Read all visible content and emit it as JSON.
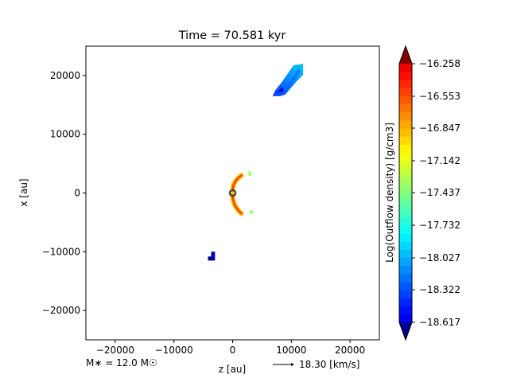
{
  "chart_data": {
    "type": "heatmap",
    "title": "Time = 70.581 kyr",
    "xlabel": "z [au]",
    "ylabel": "x [au]",
    "xlim": [
      -25000,
      25000
    ],
    "ylim": [
      -25000,
      25000
    ],
    "x_ticks": [
      -20000,
      -10000,
      0,
      10000,
      20000
    ],
    "x_tick_labels": [
      "−20000",
      "−10000",
      "0",
      "10000",
      "20000"
    ],
    "y_ticks": [
      -20000,
      -10000,
      0,
      10000,
      20000
    ],
    "y_tick_labels": [
      "−20000",
      "−10000",
      "0",
      "10000",
      "20000"
    ],
    "grid": false,
    "colorbar": {
      "label": "Log(Outflow density) [g/cm3]",
      "colormap": "jet",
      "range": [
        -18.617,
        -16.258
      ],
      "ticks": [
        -16.258,
        -16.553,
        -16.847,
        -17.142,
        -17.437,
        -17.732,
        -18.027,
        -18.322,
        -18.617
      ],
      "tick_labels": [
        "−16.258",
        "−16.553",
        "−16.847",
        "−17.142",
        "−17.437",
        "−17.732",
        "−18.027",
        "−18.322",
        "−18.617"
      ],
      "extend": "both"
    },
    "regions": [
      {
        "name": "upper-outflow-lobe",
        "z_range": [
          6800,
          12000
        ],
        "x_range": [
          16500,
          22000
        ],
        "log_density_range": [
          -18.4,
          -17.8
        ]
      },
      {
        "name": "central-arc",
        "z_range": [
          -300,
          1500
        ],
        "x_range": [
          -3500,
          3000
        ],
        "log_density_range": [
          -17.0,
          -16.7
        ]
      },
      {
        "name": "lower-clump",
        "z_range": [
          -4200,
          -3000
        ],
        "x_range": [
          -11500,
          -10000
        ],
        "log_density_range": [
          -18.6,
          -18.5
        ]
      }
    ],
    "source_marker": {
      "z": 0,
      "x": 0
    }
  },
  "annotations": {
    "mass": "M$_{*}$ = 12.0 M$_{\\odot}$",
    "mass_display": "M∗ = 12.0 M☉",
    "velocity_scale": "18.30 [km/s]"
  }
}
